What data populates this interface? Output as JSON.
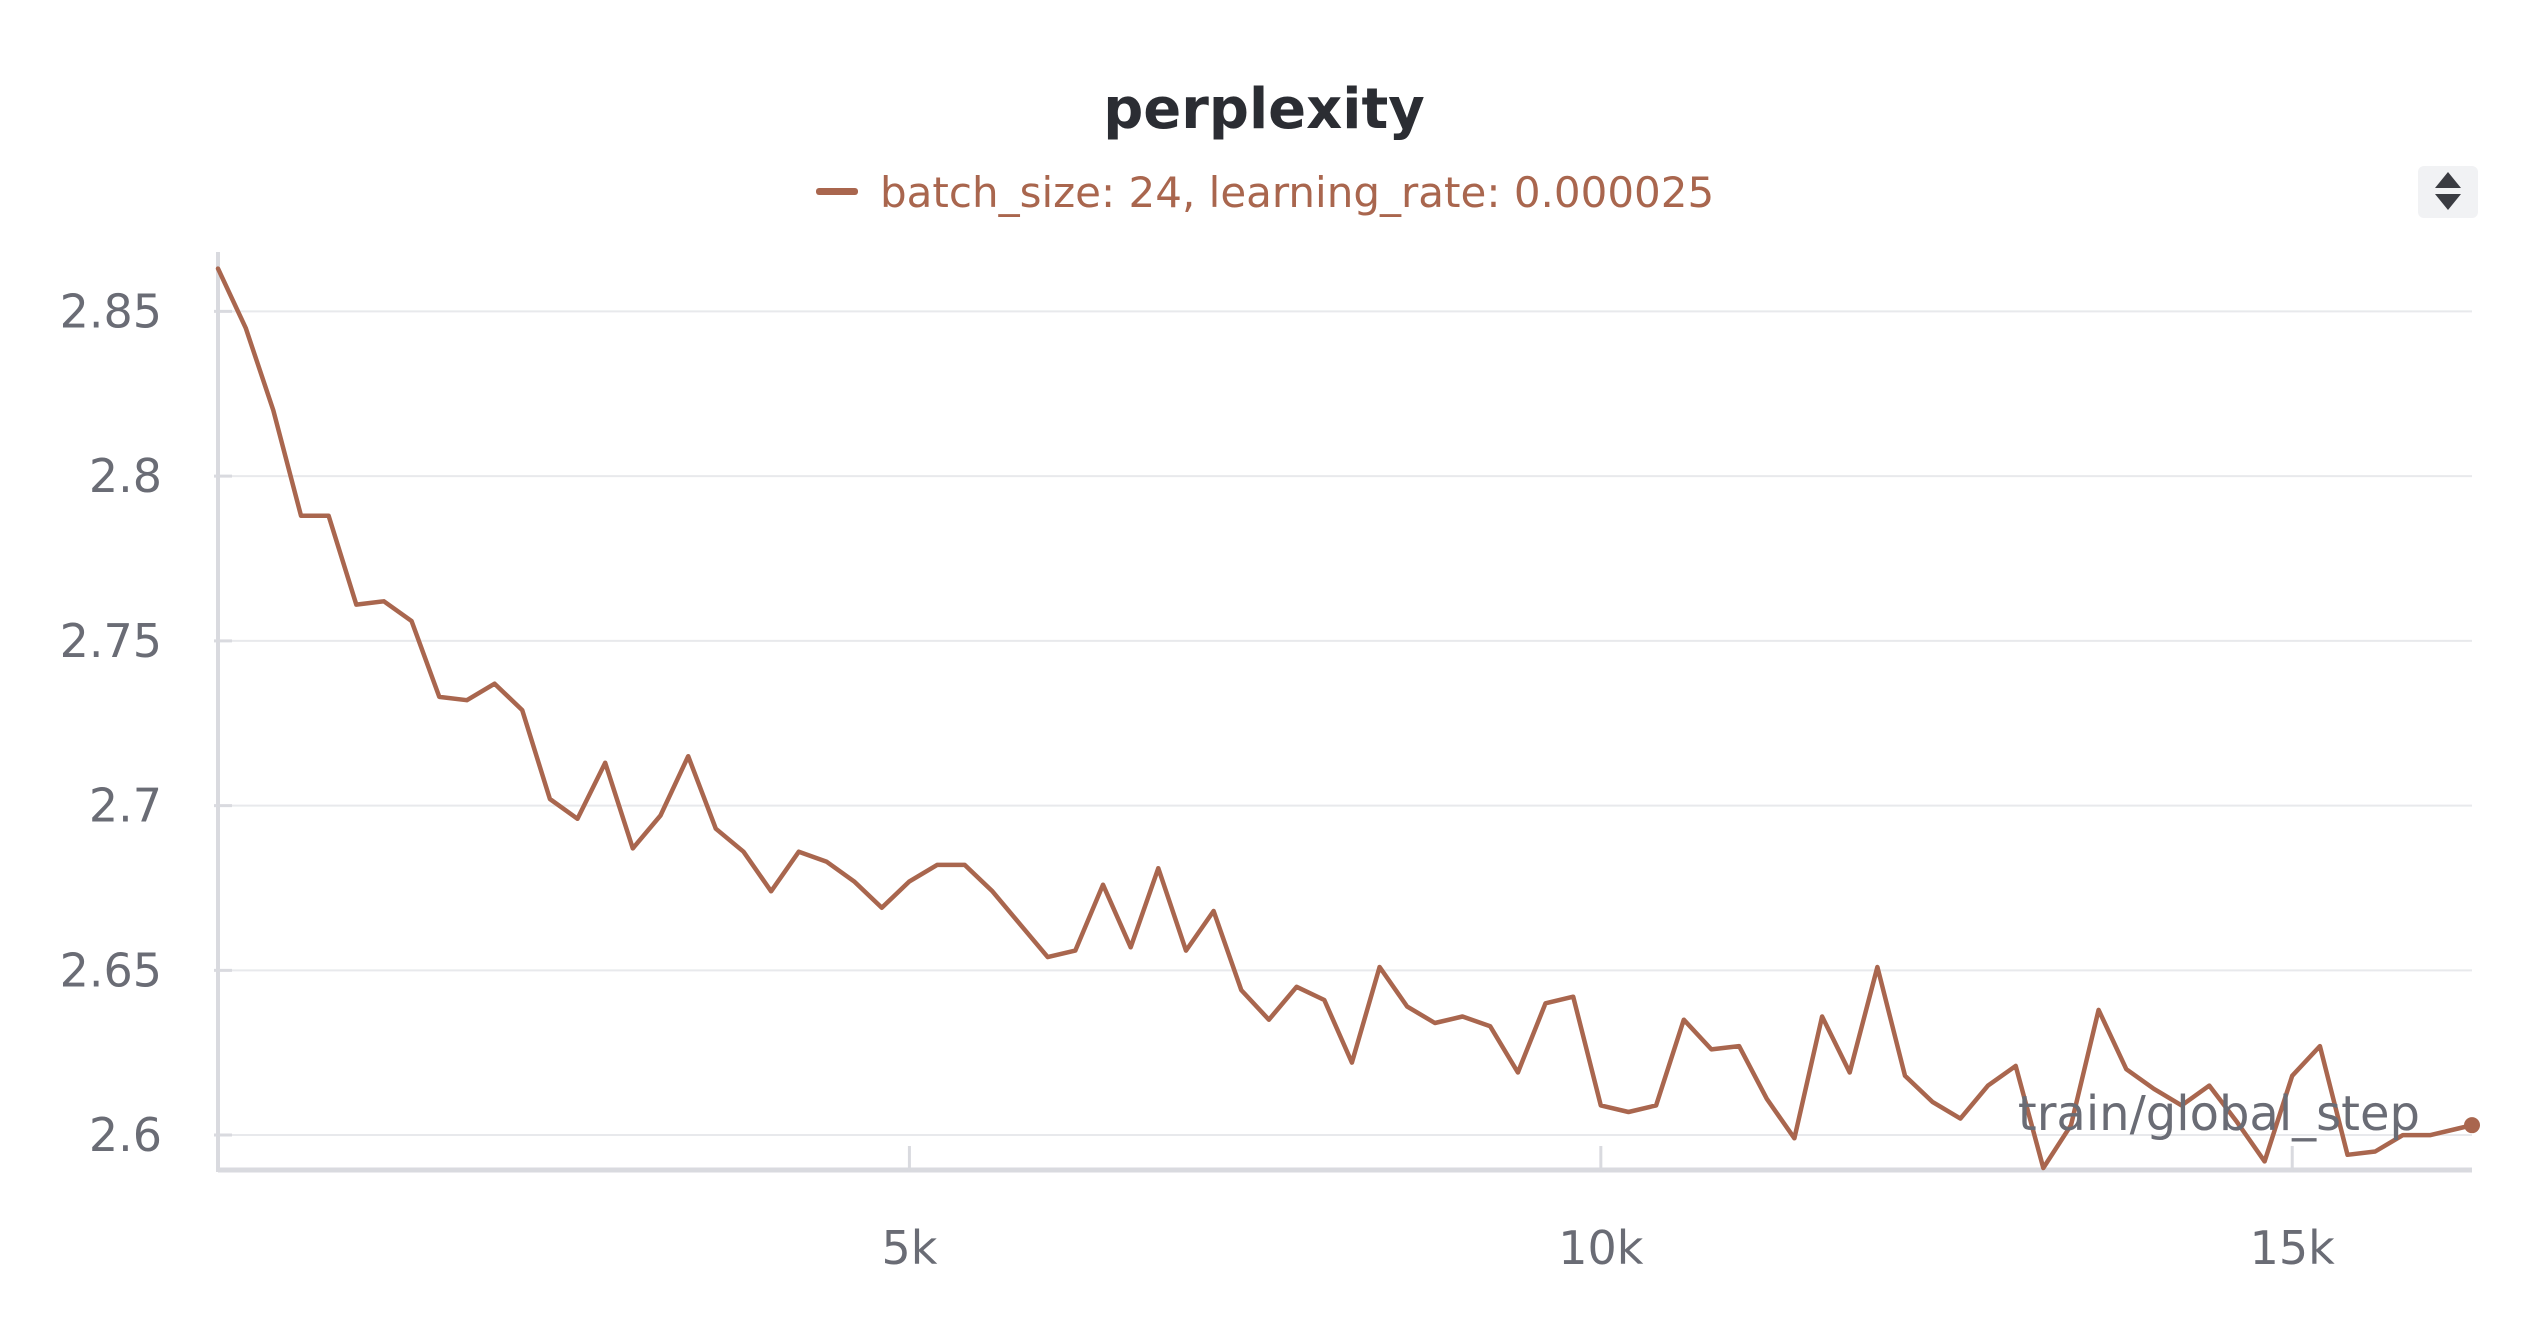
{
  "colors": {
    "series": "#a9664e",
    "grid": "#e8e9ec",
    "axis": "#d9dadf",
    "tick_text": "#6a6c75",
    "title": "#2b2d33"
  },
  "icons": {
    "legend_scroll": "up-down-arrows-icon"
  },
  "chart_data": {
    "type": "line",
    "title": "perplexity",
    "xlabel": "train/global_step",
    "ylabel": "",
    "xlim": [
      0,
      16300
    ],
    "ylim": [
      2.59,
      2.865
    ],
    "xticks": [
      5000,
      10000,
      15000
    ],
    "xtick_labels": [
      "5k",
      "10k",
      "15k"
    ],
    "yticks": [
      2.6,
      2.65,
      2.7,
      2.75,
      2.8,
      2.85
    ],
    "ytick_labels": [
      "2.6",
      "2.65",
      "2.7",
      "2.75",
      "2.8",
      "2.85"
    ],
    "grid": true,
    "legend_position": "top-center",
    "series": [
      {
        "name": "batch_size: 24, learning_rate: 0.000025",
        "color": "#a9664e",
        "x": [
          0,
          200,
          400,
          600,
          800,
          1000,
          1200,
          1400,
          1600,
          1800,
          2000,
          2200,
          2400,
          2600,
          2800,
          3000,
          3200,
          3400,
          3600,
          3800,
          4000,
          4200,
          4400,
          4600,
          4800,
          5000,
          5200,
          5400,
          5600,
          5800,
          6000,
          6200,
          6400,
          6600,
          6800,
          7000,
          7200,
          7400,
          7600,
          7800,
          8000,
          8200,
          8400,
          8600,
          8800,
          9000,
          9200,
          9400,
          9600,
          9800,
          10000,
          10200,
          10400,
          10600,
          10800,
          11000,
          11200,
          11400,
          11600,
          11800,
          12000,
          12200,
          12400,
          12600,
          12800,
          13000,
          13200,
          13400,
          13600,
          13800,
          14000,
          14200,
          14400,
          14600,
          14800,
          15000,
          15200,
          15400,
          15600,
          15800,
          16000,
          16200,
          16300
        ],
        "y": [
          2.863,
          2.845,
          2.82,
          2.788,
          2.788,
          2.761,
          2.762,
          2.756,
          2.733,
          2.732,
          2.737,
          2.729,
          2.702,
          2.696,
          2.713,
          2.687,
          2.697,
          2.715,
          2.693,
          2.686,
          2.674,
          2.686,
          2.683,
          2.677,
          2.669,
          2.677,
          2.682,
          2.682,
          2.674,
          2.664,
          2.654,
          2.656,
          2.676,
          2.657,
          2.681,
          2.656,
          2.668,
          2.644,
          2.635,
          2.645,
          2.641,
          2.622,
          2.651,
          2.639,
          2.634,
          2.636,
          2.633,
          2.619,
          2.64,
          2.642,
          2.609,
          2.607,
          2.609,
          2.635,
          2.626,
          2.627,
          2.611,
          2.599,
          2.636,
          2.619,
          2.651,
          2.618,
          2.61,
          2.605,
          2.615,
          2.621,
          2.59,
          2.603,
          2.638,
          2.62,
          2.614,
          2.609,
          2.615,
          2.604,
          2.592,
          2.618,
          2.627,
          2.594,
          2.595,
          2.6,
          2.6,
          2.602,
          2.603
        ]
      }
    ]
  }
}
